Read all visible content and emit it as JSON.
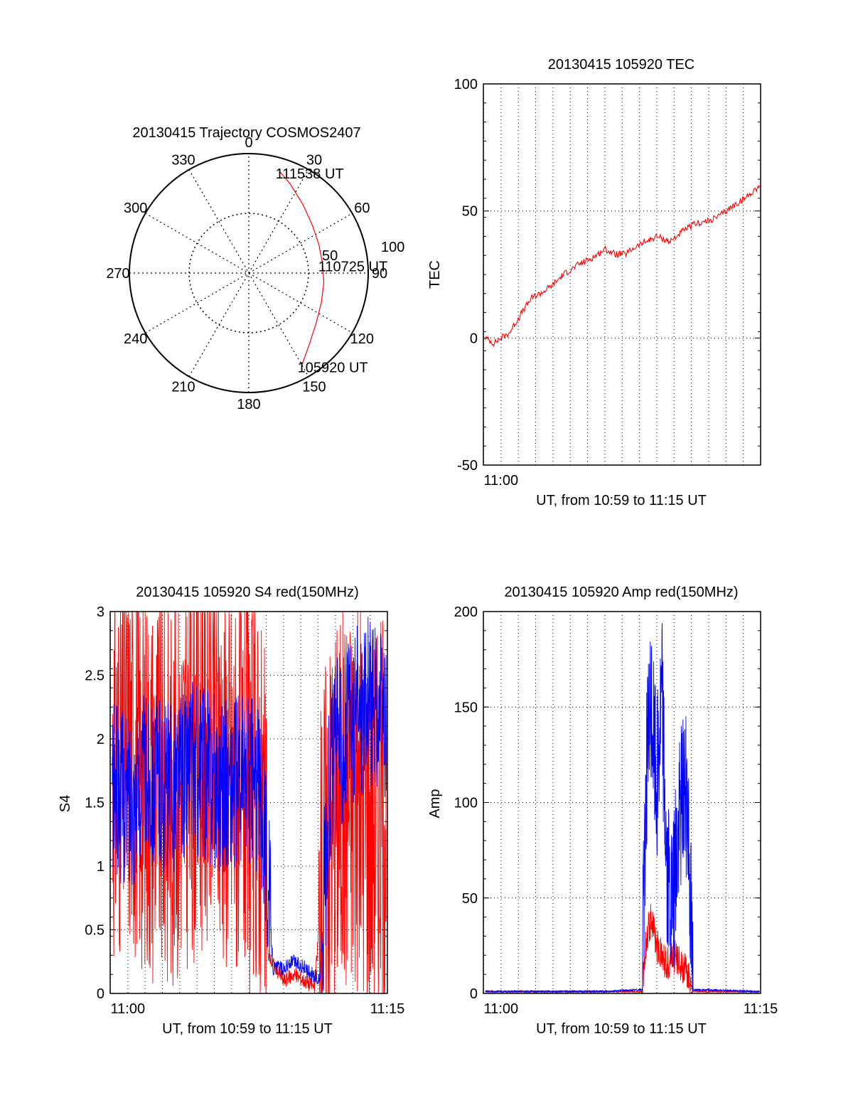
{
  "colors": {
    "red": "#ff0000",
    "blue": "#0000ff",
    "axis": "#000000",
    "grid": "#000000"
  },
  "chart_data": [
    {
      "type": "polar",
      "title": "20130415 Trajectory COSMOS2407",
      "angle_labels": [
        "0",
        "30",
        "60",
        "90",
        "120",
        "150",
        "180",
        "210",
        "240",
        "270",
        "300",
        "330"
      ],
      "radius_labels": [
        "50",
        "100"
      ],
      "trajectory": {
        "name": "",
        "points": [
          {
            "az": 150,
            "el": 10
          },
          {
            "az": 139,
            "el": 20
          },
          {
            "az": 126,
            "el": 27
          },
          {
            "az": 112,
            "el": 31
          },
          {
            "az": 97,
            "el": 33
          },
          {
            "az": 83,
            "el": 34
          },
          {
            "az": 68,
            "el": 33
          },
          {
            "az": 53,
            "el": 30
          },
          {
            "az": 38,
            "el": 24
          },
          {
            "az": 25,
            "el": 16
          },
          {
            "az": 17,
            "el": 10
          }
        ]
      },
      "annotations": [
        {
          "text": "111538 UT",
          "az": 17,
          "el": 10
        },
        {
          "text": "110725 UT",
          "az": 83,
          "el": 34
        },
        {
          "text": "105920 UT",
          "az": 150,
          "el": 10
        }
      ]
    },
    {
      "type": "line",
      "title": "20130415 105920 TEC",
      "xlabel": "UT, from 10:59 to 11:15 UT",
      "ylabel": "TEC",
      "xlim": [
        10.983,
        11.25
      ],
      "ylim": [
        -50,
        100
      ],
      "yticks": [
        "-50",
        "0",
        "50",
        "100"
      ],
      "xticks": [
        "11:00"
      ],
      "grid": true,
      "series": [
        {
          "name": "",
          "x": [
            10.985,
            10.993,
            11.0,
            11.008,
            11.02,
            11.03,
            11.04,
            11.05,
            11.06,
            11.075,
            11.09,
            11.1,
            11.11,
            11.12,
            11.13,
            11.14,
            11.15,
            11.163,
            11.175,
            11.187,
            11.2,
            11.21,
            11.22,
            11.235,
            11.249
          ],
          "values": [
            0,
            -2,
            0,
            2,
            10,
            16,
            18,
            21,
            25,
            29,
            32,
            35,
            33,
            33,
            36,
            38,
            40,
            38,
            42,
            45,
            46,
            48,
            51,
            55,
            60
          ]
        }
      ]
    },
    {
      "type": "line",
      "title": "20130415 105920 S4 red(150MHz)",
      "xlabel": "UT, from 10:59 to 11:15 UT",
      "ylabel": "S4",
      "xlim": [
        10.983,
        11.25
      ],
      "ylim": [
        0,
        3
      ],
      "yticks": [
        "0",
        "0.5",
        "1",
        "1.5",
        "2",
        "2.5",
        "3"
      ],
      "xticks": [
        "11:00",
        "11:15"
      ],
      "grid": true,
      "series": [
        {
          "name": "",
          "x": [
            10.985,
            11.0,
            11.02,
            11.04,
            11.06,
            11.08,
            11.1,
            11.115,
            11.13,
            11.135,
            11.15,
            11.16,
            11.17,
            11.18,
            11.19,
            11.2,
            11.22,
            11.24,
            11.249
          ],
          "values": [
            1.8,
            1.9,
            1.7,
            1.6,
            1.8,
            2.0,
            1.7,
            1.6,
            1.5,
            0.3,
            0.1,
            0.15,
            0.1,
            0.05,
            1.2,
            1.5,
            1.6,
            1.4,
            1.5
          ]
        },
        {
          "name": "",
          "x": [
            10.985,
            11.0,
            11.02,
            11.04,
            11.06,
            11.08,
            11.1,
            11.115,
            11.13,
            11.14,
            11.15,
            11.16,
            11.17,
            11.185,
            11.195,
            11.205,
            11.22,
            11.235,
            11.249
          ],
          "values": [
            1.6,
            1.5,
            1.7,
            1.6,
            1.8,
            1.7,
            1.6,
            1.7,
            1.5,
            0.2,
            0.2,
            0.25,
            0.2,
            0.1,
            1.8,
            2.0,
            2.2,
            2.3,
            2.1
          ]
        }
      ]
    },
    {
      "type": "line",
      "title": "20130415 105920 Amp red(150MHz)",
      "xlabel": "UT, from 10:59 to 11:15 UT",
      "ylabel": "Amp",
      "xlim": [
        10.983,
        11.25
      ],
      "ylim": [
        0,
        200
      ],
      "yticks": [
        "0",
        "50",
        "100",
        "150",
        "200"
      ],
      "xticks": [
        "11:00",
        "11:15"
      ],
      "grid": true,
      "series": [
        {
          "name": "",
          "x": [
            10.985,
            11.1,
            11.136,
            11.14,
            11.145,
            11.15,
            11.155,
            11.16,
            11.165,
            11.17,
            11.175,
            11.18,
            11.185,
            11.249
          ],
          "values": [
            1,
            1,
            1,
            30,
            40,
            25,
            20,
            15,
            20,
            18,
            14,
            10,
            1,
            1
          ]
        },
        {
          "name": "",
          "x": [
            10.985,
            11.1,
            11.136,
            11.14,
            11.145,
            11.15,
            11.155,
            11.16,
            11.165,
            11.17,
            11.175,
            11.18,
            11.185,
            11.249
          ],
          "values": [
            1,
            1,
            2,
            120,
            150,
            110,
            160,
            60,
            40,
            80,
            110,
            100,
            2,
            1
          ]
        }
      ]
    }
  ]
}
